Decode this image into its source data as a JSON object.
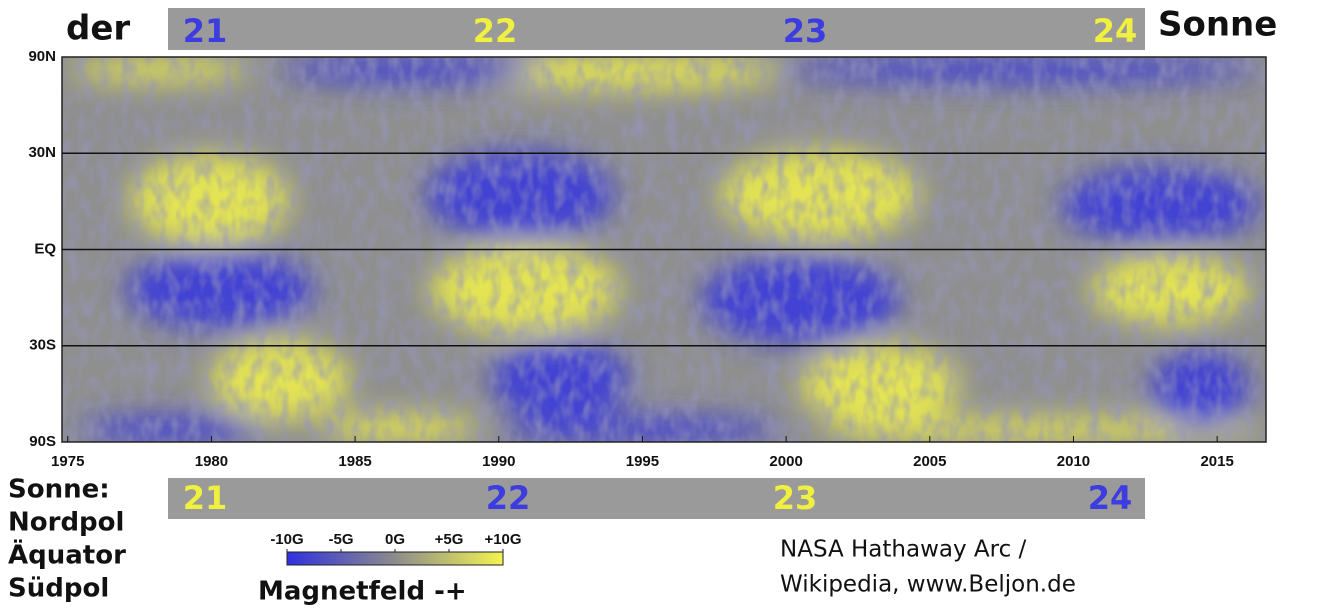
{
  "chart_data": {
    "type": "heatmap",
    "title_left": "der",
    "title_right": "Sonne",
    "xlim": [
      1974.8,
      2016.7
    ],
    "xticks": [
      1975,
      1980,
      1985,
      1990,
      1995,
      2000,
      2005,
      2010,
      2015
    ],
    "ylim": [
      -90,
      90
    ],
    "yscale": "sine-latitude",
    "yticks": [
      {
        "value": 90,
        "label": "90N"
      },
      {
        "value": 30,
        "label": "30N"
      },
      {
        "value": 0,
        "label": "EQ"
      },
      {
        "value": -30,
        "label": "30S"
      },
      {
        "value": -90,
        "label": "90S"
      }
    ],
    "grid": true,
    "cycles_north": {
      "labels": [
        "21",
        "22",
        "23",
        "24"
      ],
      "colors": [
        "#3c3ce0",
        "#f0f040",
        "#3c3ce0",
        "#f0f040"
      ]
    },
    "cycles_south": {
      "labels": [
        "21",
        "22",
        "23",
        "24"
      ],
      "colors": [
        "#f0f040",
        "#3c3ce0",
        "#f0f040",
        "#3c3ce0"
      ]
    },
    "legend_rows": [
      "Sonne:",
      "Nordpol",
      "Äquator",
      "Südpol"
    ],
    "colorbar": {
      "clim": [
        -10,
        10
      ],
      "ticks": [
        {
          "value": -10,
          "label": "-10G"
        },
        {
          "value": -5,
          "label": "-5G"
        },
        {
          "value": 0,
          "label": "0G"
        },
        {
          "value": 5,
          "label": "+5G"
        },
        {
          "value": 10,
          "label": "+10G"
        }
      ],
      "colors": [
        "#3030e0",
        "#8c8c8c",
        "#f4f450"
      ],
      "label": "Magnetfeld -+"
    },
    "credit": [
      "NASA Hathaway Arc /",
      "Wikipedia,  www.Beljon.de"
    ]
  }
}
